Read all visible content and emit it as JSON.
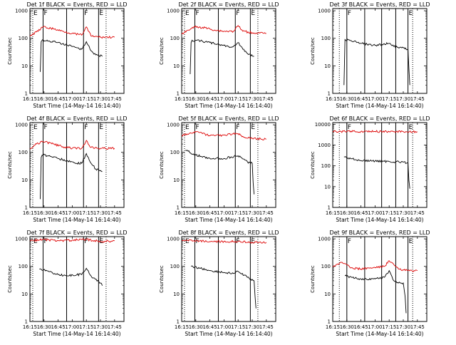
{
  "figure": {
    "background": "#ffffff",
    "axis_color": "#000000",
    "events_color": "#000000",
    "lld_color": "#dd0000"
  },
  "chart_data": [
    {
      "type": "line",
      "title": "Det 1f BLACK = Events, RED = LLD",
      "xlabel": "Start Time (14-May-14 16:14:40)",
      "ylabel": "Counts/sec",
      "x_ticks": [
        "16:15",
        "16:30",
        "16:45",
        "17:00",
        "17:15",
        "17:30",
        "17:45"
      ],
      "y_ticks": [
        "1",
        "10",
        "100",
        "1000"
      ],
      "xlim": [
        "16:15",
        "17:55"
      ],
      "ylim": [
        1,
        1200
      ],
      "y_scale": "log",
      "markers": [
        {
          "time": "16:18",
          "label": "E",
          "style": "dotted"
        },
        {
          "time": "16:29",
          "label": "F",
          "style": "solid"
        },
        {
          "time": "16:54",
          "label": "",
          "style": "solid"
        },
        {
          "time": "17:12",
          "label": "F",
          "style": "solid"
        },
        {
          "time": "17:28",
          "label": "E",
          "style": "solid"
        },
        {
          "time": "17:36",
          "label": "",
          "style": "dotted"
        }
      ],
      "series": [
        {
          "name": "BLACK = Events",
          "times": [
            "16:26",
            "16:27",
            "16:28",
            "16:35",
            "16:45",
            "16:55",
            "17:00",
            "17:05",
            "17:10",
            "17:15",
            "17:20",
            "17:25",
            "17:32"
          ],
          "values": [
            6,
            75,
            85,
            80,
            70,
            55,
            50,
            45,
            40,
            75,
            35,
            25,
            22
          ]
        },
        {
          "name": "RED = LLD",
          "times": [
            "16:15",
            "16:22",
            "16:29",
            "16:40",
            "16:50",
            "17:00",
            "17:10",
            "17:15",
            "17:20",
            "17:30",
            "17:45"
          ],
          "values": [
            120,
            170,
            260,
            220,
            180,
            150,
            130,
            260,
            120,
            110,
            110
          ]
        }
      ]
    },
    {
      "type": "line",
      "title": "Det 2f BLACK = Events, RED = LLD",
      "xlabel": "Start Time (14-May-14 16:14:40)",
      "ylabel": "Counts/sec",
      "x_ticks": [
        "16:15",
        "16:30",
        "16:45",
        "17:00",
        "17:15",
        "17:30",
        "17:45"
      ],
      "y_ticks": [
        "1",
        "10",
        "100",
        "1000"
      ],
      "xlim": [
        "16:15",
        "17:55"
      ],
      "ylim": [
        1,
        1200
      ],
      "y_scale": "log",
      "markers": [
        {
          "time": "16:18",
          "label": "E",
          "style": "dotted"
        },
        {
          "time": "16:29",
          "label": "F",
          "style": "solid"
        },
        {
          "time": "16:54",
          "label": "",
          "style": "solid"
        },
        {
          "time": "17:12",
          "label": "F",
          "style": "solid"
        },
        {
          "time": "17:28",
          "label": "E",
          "style": "solid"
        },
        {
          "time": "17:36",
          "label": "",
          "style": "dotted"
        }
      ],
      "series": [
        {
          "name": "BLACK = Events",
          "times": [
            "16:24",
            "16:25",
            "16:26",
            "16:35",
            "16:45",
            "16:55",
            "17:00",
            "17:05",
            "17:10",
            "17:15",
            "17:20",
            "17:25",
            "17:32"
          ],
          "values": [
            5,
            70,
            85,
            80,
            70,
            60,
            55,
            50,
            50,
            70,
            40,
            28,
            22
          ]
        },
        {
          "name": "RED = LLD",
          "times": [
            "16:15",
            "16:22",
            "16:29",
            "16:40",
            "16:50",
            "17:00",
            "17:10",
            "17:15",
            "17:20",
            "17:30",
            "17:45"
          ],
          "values": [
            140,
            200,
            260,
            240,
            200,
            180,
            180,
            290,
            180,
            160,
            150
          ]
        }
      ]
    },
    {
      "type": "line",
      "title": "Det 3f BLACK = Events, RED = LLD",
      "xlabel": "Start Time (14-May-14 16:14:40)",
      "ylabel": "Counts/sec",
      "x_ticks": [
        "16:15",
        "16:30",
        "16:45",
        "17:00",
        "17:15",
        "17:30",
        "17:45"
      ],
      "y_ticks": [
        "1",
        "10",
        "100",
        "1000"
      ],
      "xlim": [
        "16:15",
        "17:55"
      ],
      "ylim": [
        1,
        1200
      ],
      "y_scale": "log",
      "markers": [
        {
          "time": "16:22",
          "label": "",
          "style": "dotted"
        },
        {
          "time": "16:30",
          "label": "F",
          "style": "solid"
        },
        {
          "time": "16:49",
          "label": "",
          "style": "solid"
        },
        {
          "time": "17:07",
          "label": "",
          "style": "solid"
        },
        {
          "time": "17:22",
          "label": "",
          "style": "solid"
        },
        {
          "time": "17:35",
          "label": "E",
          "style": "solid"
        },
        {
          "time": "17:40",
          "label": "",
          "style": "dotted"
        }
      ],
      "series": [
        {
          "name": "BLACK = Events",
          "times": [
            "16:27",
            "16:28",
            "16:35",
            "16:45",
            "17:00",
            "17:15",
            "17:20",
            "17:30",
            "17:35",
            "17:36",
            "17:37"
          ],
          "values": [
            2,
            90,
            80,
            65,
            55,
            65,
            50,
            45,
            40,
            8,
            2
          ]
        }
      ]
    },
    {
      "type": "line",
      "title": "Det 4f BLACK = Events, RED = LLD",
      "xlabel": "Start Time (14-May-14 16:14:40)",
      "ylabel": "Counts/sec",
      "x_ticks": [
        "16:15",
        "16:30",
        "16:45",
        "17:00",
        "17:15",
        "17:30",
        "17:45"
      ],
      "y_ticks": [
        "1",
        "10",
        "100",
        "1000"
      ],
      "xlim": [
        "16:15",
        "17:55"
      ],
      "ylim": [
        1,
        1200
      ],
      "y_scale": "log",
      "markers": [
        {
          "time": "16:18",
          "label": "E",
          "style": "dotted"
        },
        {
          "time": "16:29",
          "label": "F",
          "style": "solid"
        },
        {
          "time": "16:54",
          "label": "",
          "style": "solid"
        },
        {
          "time": "17:12",
          "label": "F",
          "style": "solid"
        },
        {
          "time": "17:28",
          "label": "E",
          "style": "solid"
        },
        {
          "time": "17:36",
          "label": "",
          "style": "dotted"
        }
      ],
      "series": [
        {
          "name": "BLACK = Events",
          "times": [
            "16:26",
            "16:27",
            "16:28",
            "16:35",
            "16:45",
            "16:55",
            "17:00",
            "17:05",
            "17:10",
            "17:15",
            "17:20",
            "17:25",
            "17:32"
          ],
          "values": [
            2,
            65,
            80,
            75,
            60,
            50,
            45,
            40,
            40,
            90,
            40,
            25,
            20
          ]
        },
        {
          "name": "RED = LLD",
          "times": [
            "16:15",
            "16:22",
            "16:29",
            "16:40",
            "16:50",
            "17:00",
            "17:10",
            "17:15",
            "17:20",
            "17:30",
            "17:45"
          ],
          "values": [
            140,
            200,
            250,
            200,
            160,
            140,
            140,
            270,
            150,
            140,
            140
          ]
        }
      ]
    },
    {
      "type": "line",
      "title": "Det 5f BLACK = Events, RED = LLD",
      "xlabel": "Start Time (14-May-14 16:14:40)",
      "ylabel": "Counts/sec",
      "x_ticks": [
        "16:15",
        "16:30",
        "16:45",
        "17:00",
        "17:15",
        "17:30",
        "17:45"
      ],
      "y_ticks": [
        "1",
        "10",
        "100",
        "1000"
      ],
      "xlim": [
        "16:15",
        "17:55"
      ],
      "ylim": [
        1,
        1200
      ],
      "y_scale": "log",
      "markers": [
        {
          "time": "16:18",
          "label": "E",
          "style": "dotted"
        },
        {
          "time": "16:29",
          "label": "F",
          "style": "solid"
        },
        {
          "time": "16:54",
          "label": "",
          "style": "solid"
        },
        {
          "time": "17:12",
          "label": "F",
          "style": "solid"
        },
        {
          "time": "17:28",
          "label": "E",
          "style": "solid"
        },
        {
          "time": "17:36",
          "label": "",
          "style": "dotted"
        }
      ],
      "series": [
        {
          "name": "BLACK = Events",
          "times": [
            "16:19",
            "16:30",
            "16:45",
            "17:00",
            "17:15",
            "17:25",
            "17:30",
            "17:31",
            "17:32"
          ],
          "values": [
            120,
            80,
            60,
            60,
            75,
            45,
            40,
            8,
            3
          ]
        },
        {
          "name": "RED = LLD",
          "times": [
            "16:15",
            "16:30",
            "16:45",
            "17:00",
            "17:15",
            "17:20",
            "17:30",
            "17:45"
          ],
          "values": [
            400,
            550,
            400,
            420,
            480,
            380,
            320,
            300
          ]
        }
      ]
    },
    {
      "type": "line",
      "title": "Det 6f BLACK = Events, RED = LLD",
      "xlabel": "Start Time (14-May-14 16:14:40)",
      "ylabel": "Counts/sec",
      "x_ticks": [
        "16:15",
        "16:30",
        "16:45",
        "17:00",
        "17:15",
        "17:30",
        "17:45"
      ],
      "y_ticks": [
        "1",
        "10",
        "100",
        "1000",
        "10000"
      ],
      "xlim": [
        "16:15",
        "17:55"
      ],
      "ylim": [
        1,
        12000
      ],
      "y_scale": "log",
      "markers": [
        {
          "time": "16:22",
          "label": "",
          "style": "dotted"
        },
        {
          "time": "16:30",
          "label": "F",
          "style": "solid"
        },
        {
          "time": "16:49",
          "label": "",
          "style": "solid"
        },
        {
          "time": "17:07",
          "label": "",
          "style": "solid"
        },
        {
          "time": "17:22",
          "label": "",
          "style": "solid"
        },
        {
          "time": "17:35",
          "label": "E",
          "style": "solid"
        },
        {
          "time": "17:40",
          "label": "",
          "style": "dotted"
        }
      ],
      "series": [
        {
          "name": "BLACK = Events",
          "times": [
            "16:27",
            "16:35",
            "16:45",
            "17:00",
            "17:15",
            "17:30",
            "17:35",
            "17:36",
            "17:37"
          ],
          "values": [
            270,
            220,
            180,
            170,
            160,
            150,
            140,
            20,
            8
          ]
        },
        {
          "name": "RED = LLD",
          "times": [
            "16:15",
            "16:30",
            "16:45",
            "17:00",
            "17:15",
            "17:30",
            "17:45"
          ],
          "values": [
            4500,
            4500,
            4500,
            4500,
            4400,
            4400,
            4400
          ]
        }
      ]
    },
    {
      "type": "line",
      "title": "Det 7f BLACK = Events, RED = LLD",
      "xlabel": "Start Time (14-May-14 16:14:40)",
      "ylabel": "Counts/sec",
      "x_ticks": [
        "16:15",
        "16:30",
        "16:45",
        "17:00",
        "17:15",
        "17:30",
        "17:45"
      ],
      "y_ticks": [
        "1",
        "10",
        "100",
        "1000"
      ],
      "xlim": [
        "16:15",
        "17:55"
      ],
      "ylim": [
        1,
        1200
      ],
      "y_scale": "log",
      "markers": [
        {
          "time": "16:18",
          "label": "E",
          "style": "dotted"
        },
        {
          "time": "16:29",
          "label": "F",
          "style": "solid"
        },
        {
          "time": "16:54",
          "label": "",
          "style": "solid"
        },
        {
          "time": "17:12",
          "label": "F",
          "style": "solid"
        },
        {
          "time": "17:28",
          "label": "E",
          "style": "solid"
        },
        {
          "time": "17:36",
          "label": "",
          "style": "dotted"
        }
      ],
      "series": [
        {
          "name": "BLACK = Events",
          "times": [
            "16:25",
            "16:35",
            "16:45",
            "16:55",
            "17:05",
            "17:10",
            "17:15",
            "17:20",
            "17:30",
            "17:32"
          ],
          "values": [
            80,
            65,
            50,
            45,
            50,
            50,
            85,
            45,
            25,
            20
          ]
        },
        {
          "name": "RED = LLD",
          "times": [
            "16:15",
            "16:30",
            "16:45",
            "17:00",
            "17:15",
            "17:30",
            "17:45"
          ],
          "values": [
            850,
            950,
            850,
            900,
            950,
            800,
            850
          ]
        }
      ]
    },
    {
      "type": "line",
      "title": "Det 8f BLACK = Events, RED = LLD",
      "xlabel": "Start Time (14-May-14 16:14:40)",
      "ylabel": "Counts/sec",
      "x_ticks": [
        "16:15",
        "16:30",
        "16:45",
        "17:00",
        "17:15",
        "17:30",
        "17:45"
      ],
      "y_ticks": [
        "1",
        "10",
        "100",
        "1000"
      ],
      "xlim": [
        "16:15",
        "17:55"
      ],
      "ylim": [
        1,
        1200
      ],
      "y_scale": "log",
      "markers": [
        {
          "time": "16:18",
          "label": "E",
          "style": "dotted"
        },
        {
          "time": "16:29",
          "label": "F",
          "style": "solid"
        },
        {
          "time": "16:54",
          "label": "",
          "style": "solid"
        },
        {
          "time": "17:12",
          "label": "F",
          "style": "solid"
        },
        {
          "time": "17:28",
          "label": "E",
          "style": "solid"
        },
        {
          "time": "17:36",
          "label": "",
          "style": "dotted"
        }
      ],
      "series": [
        {
          "name": "BLACK = Events",
          "times": [
            "16:25",
            "16:35",
            "16:45",
            "17:00",
            "17:10",
            "17:15",
            "17:25",
            "17:32",
            "17:33",
            "17:34"
          ],
          "values": [
            100,
            85,
            70,
            60,
            55,
            65,
            40,
            30,
            8,
            3
          ]
        },
        {
          "name": "RED = LLD",
          "times": [
            "16:15",
            "16:30",
            "16:45",
            "17:00",
            "17:15",
            "17:30",
            "17:45"
          ],
          "values": [
            850,
            850,
            800,
            800,
            800,
            750,
            750
          ]
        }
      ]
    },
    {
      "type": "line",
      "title": "Det 9f BLACK = Events, RED = LLD",
      "xlabel": "Start Time (14-May-14 16:14:40)",
      "ylabel": "Counts/sec",
      "x_ticks": [
        "16:15",
        "16:30",
        "16:45",
        "17:00",
        "17:15",
        "17:30",
        "17:45"
      ],
      "y_ticks": [
        "1",
        "10",
        "100",
        "1000"
      ],
      "xlim": [
        "16:15",
        "17:55"
      ],
      "ylim": [
        1,
        1200
      ],
      "y_scale": "log",
      "markers": [
        {
          "time": "16:22",
          "label": "",
          "style": "dotted"
        },
        {
          "time": "16:30",
          "label": "F",
          "style": "solid"
        },
        {
          "time": "16:49",
          "label": "",
          "style": "solid"
        },
        {
          "time": "17:07",
          "label": "",
          "style": "solid"
        },
        {
          "time": "17:22",
          "label": "",
          "style": "solid"
        },
        {
          "time": "17:35",
          "label": "E",
          "style": "solid"
        },
        {
          "time": "17:40",
          "label": "",
          "style": "dotted"
        }
      ],
      "series": [
        {
          "name": "BLACK = Events",
          "times": [
            "16:28",
            "16:35",
            "16:45",
            "17:00",
            "17:10",
            "17:15",
            "17:20",
            "17:25",
            "17:30",
            "17:32",
            "17:33"
          ],
          "values": [
            45,
            40,
            35,
            35,
            40,
            70,
            30,
            25,
            25,
            8,
            2
          ]
        },
        {
          "name": "RED = LLD",
          "times": [
            "16:15",
            "16:25",
            "16:35",
            "16:45",
            "17:00",
            "17:10",
            "17:15",
            "17:25",
            "17:35",
            "17:45"
          ],
          "values": [
            95,
            140,
            90,
            80,
            90,
            100,
            160,
            80,
            70,
            70
          ]
        }
      ]
    }
  ]
}
